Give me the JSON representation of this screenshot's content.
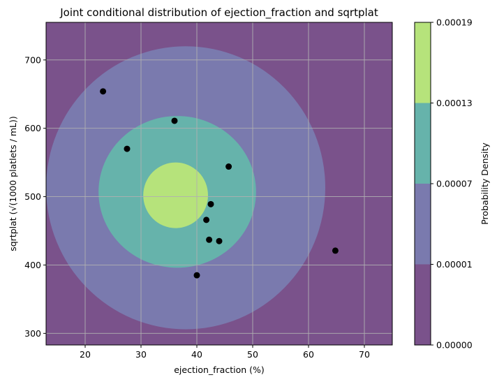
{
  "chart_data": {
    "type": "contour",
    "title": "Joint conditional distribution of ejection_fraction and sqrtplat",
    "xlabel": "ejection_fraction (%)",
    "ylabel": "sqrtplat (√(1000 platlets / mL))",
    "xlim": [
      13,
      75
    ],
    "ylim": [
      283,
      755
    ],
    "xticks": [
      20,
      30,
      40,
      50,
      60,
      70
    ],
    "yticks": [
      300,
      400,
      500,
      600,
      700
    ],
    "grid": true,
    "colorbar": {
      "label": "Probability Density",
      "levels": [
        "0.00000",
        "0.00001",
        "0.00007",
        "0.00013",
        "0.00019"
      ],
      "colors": [
        "#7a528b",
        "#7a7aae",
        "#66b3ab",
        "#b6e37b"
      ]
    },
    "contour_regions": [
      {
        "level_index": 0,
        "color": "#7a528b"
      },
      {
        "level_index": 1,
        "color": "#7a7aae",
        "center": [
          38.0,
          513
        ],
        "radius_x": 25.0,
        "radius_y": 207
      },
      {
        "level_index": 2,
        "color": "#66b3ab",
        "center": [
          36.5,
          507
        ],
        "radius_x": 14.1,
        "radius_y": 111
      },
      {
        "level_index": 3,
        "color": "#b6e37b",
        "center": [
          36.2,
          502
        ],
        "radius_x": 5.8,
        "radius_y": 48
      }
    ],
    "scatter": {
      "color": "#000000",
      "points": [
        {
          "x": 23.2,
          "y": 654
        },
        {
          "x": 27.5,
          "y": 570
        },
        {
          "x": 36.0,
          "y": 611
        },
        {
          "x": 45.7,
          "y": 544
        },
        {
          "x": 42.5,
          "y": 489
        },
        {
          "x": 41.7,
          "y": 466
        },
        {
          "x": 42.2,
          "y": 437
        },
        {
          "x": 44.0,
          "y": 435
        },
        {
          "x": 40.0,
          "y": 385
        },
        {
          "x": 64.8,
          "y": 421
        }
      ]
    }
  }
}
